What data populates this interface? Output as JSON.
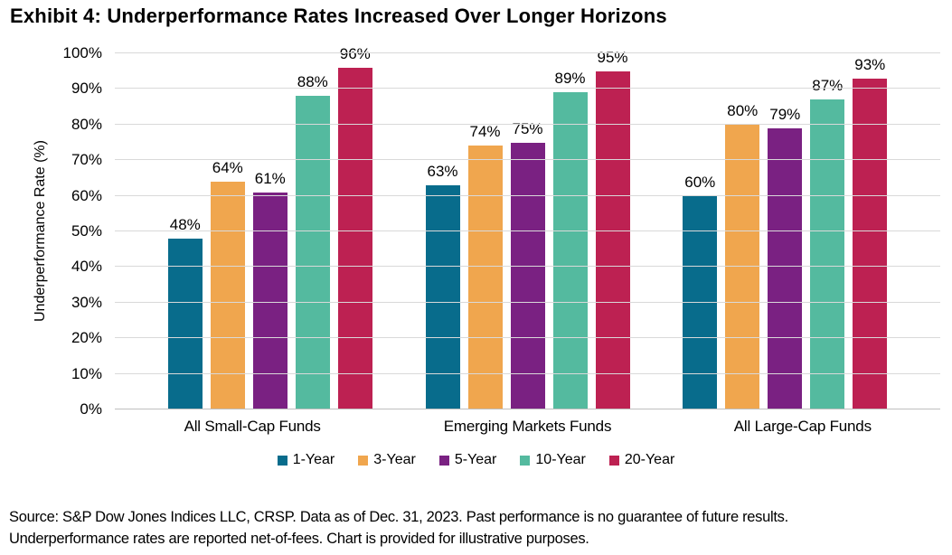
{
  "title": "Exhibit 4: Underperformance Rates Increased Over Longer Horizons",
  "chart_data": {
    "type": "bar",
    "title": "Exhibit 4: Underperformance Rates Increased Over Longer Horizons",
    "xlabel": "",
    "ylabel": "Underperformance Rate (%)",
    "ylim": [
      0,
      100
    ],
    "ytick_step": 10,
    "yticks": [
      "0%",
      "10%",
      "20%",
      "30%",
      "40%",
      "50%",
      "60%",
      "70%",
      "80%",
      "90%",
      "100%"
    ],
    "grid": true,
    "legend_position": "bottom",
    "value_label_suffix": "%",
    "categories": [
      "All Small-Cap Funds",
      "Emerging Markets Funds",
      "All Large-Cap Funds"
    ],
    "series": [
      {
        "name": "1-Year",
        "color": "#086C8C",
        "values": [
          48,
          63,
          60
        ]
      },
      {
        "name": "3-Year",
        "color": "#F0A64E",
        "values": [
          64,
          74,
          80
        ]
      },
      {
        "name": "5-Year",
        "color": "#7A2182",
        "values": [
          61,
          75,
          79
        ]
      },
      {
        "name": "10-Year",
        "color": "#54BA9F",
        "values": [
          88,
          89,
          87
        ]
      },
      {
        "name": "20-Year",
        "color": "#BD2152",
        "values": [
          96,
          95,
          93
        ]
      }
    ],
    "colors": {
      "gridline": "#d9d9d9",
      "axis_line": "#bfbfbf",
      "text": "#000000"
    }
  },
  "source": {
    "line1": "Source: S&P Dow Jones Indices LLC, CRSP. Data as of Dec. 31, 2023. Past performance is no guarantee of future results.",
    "line2": "Underperformance rates are reported net-of-fees. Chart is provided for illustrative purposes."
  }
}
